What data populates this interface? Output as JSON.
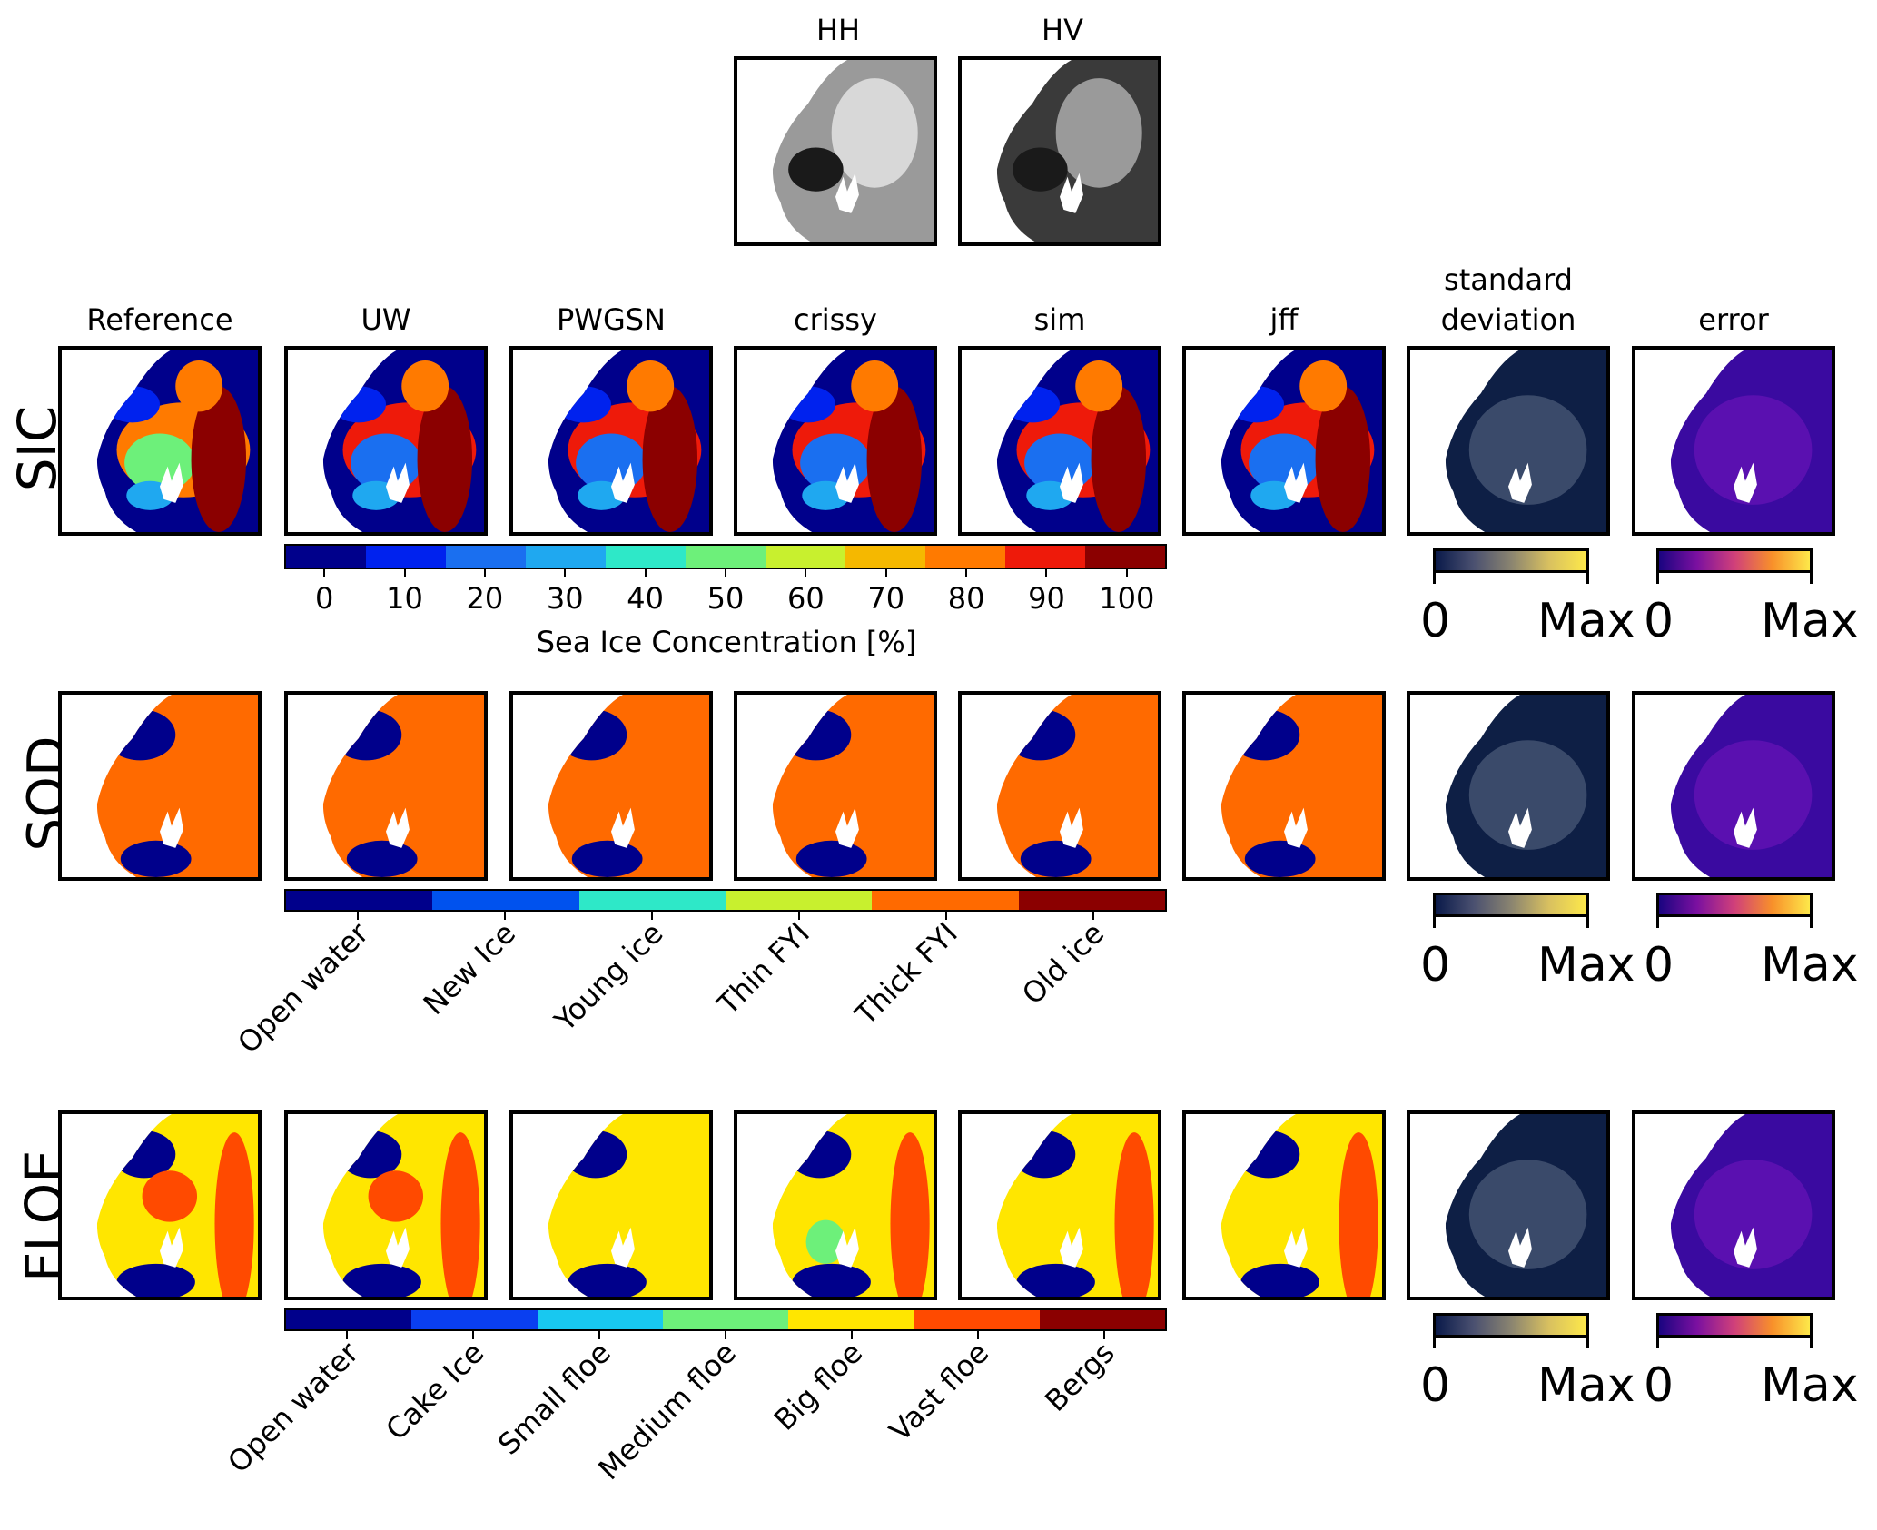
{
  "top": {
    "hh_title": "HH",
    "hv_title": "HV"
  },
  "columns": [
    "Reference",
    "UW",
    "PWGSN",
    "crissy",
    "sim",
    "jff",
    "standard\ndeviation",
    "error"
  ],
  "rows": {
    "sic": "SIC",
    "sod": "SOD",
    "floe": "FLOE"
  },
  "sic_colorbar": {
    "ticks": [
      "0",
      "10",
      "20",
      "30",
      "40",
      "50",
      "60",
      "70",
      "80",
      "90",
      "100"
    ],
    "label": "Sea Ice Concentration [%]",
    "colors": [
      "#00008b",
      "#0022ee",
      "#1a6ff0",
      "#1fa8f0",
      "#2ee8c8",
      "#6df07a",
      "#c8f02e",
      "#f5b800",
      "#ff7a00",
      "#ee1a0a",
      "#8b0000"
    ]
  },
  "sod_colorbar": {
    "labels": [
      "Open water",
      "New Ice",
      "Young ice",
      "Thin FYI",
      "Thick FYI",
      "Old ice"
    ],
    "colors": [
      "#00008b",
      "#0052ee",
      "#2ee8c8",
      "#c8f02e",
      "#ff6a00",
      "#8b0000"
    ]
  },
  "floe_colorbar": {
    "labels": [
      "Open water",
      "Cake Ice",
      "Small floe",
      "Medium floe",
      "Big floe",
      "Vast floe",
      "Bergs"
    ],
    "colors": [
      "#00008b",
      "#0a3ff0",
      "#18c8f0",
      "#6df07a",
      "#ffe600",
      "#ff4a00",
      "#8b0000"
    ]
  },
  "std_colorbar": {
    "min": "0",
    "max": "Max"
  },
  "err_colorbar": {
    "min": "0",
    "max": "Max"
  }
}
